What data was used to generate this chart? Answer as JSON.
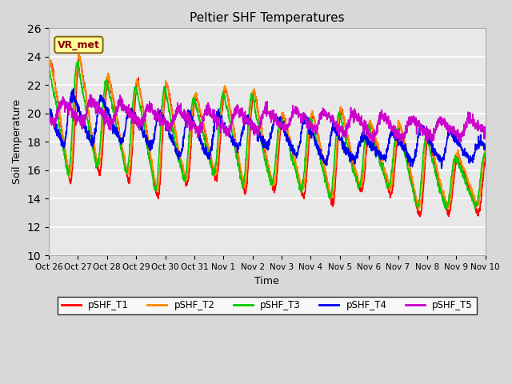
{
  "title": "Peltier SHF Temperatures",
  "xlabel": "Time",
  "ylabel": "Soil Temperature",
  "ylim": [
    10,
    26
  ],
  "yticks": [
    10,
    12,
    14,
    16,
    18,
    20,
    22,
    24,
    26
  ],
  "series_colors": [
    "#ff0000",
    "#ff8800",
    "#00cc00",
    "#0000ee",
    "#cc00cc"
  ],
  "series_names": [
    "pSHF_T1",
    "pSHF_T2",
    "pSHF_T3",
    "pSHF_T4",
    "pSHF_T5"
  ],
  "xtick_labels": [
    "Oct 26",
    "Oct 27",
    "Oct 28",
    "Oct 29",
    "Oct 30",
    "Oct 31",
    "Nov 1",
    "Nov 2",
    "Nov 3",
    "Nov 4",
    "Nov 5",
    "Nov 6",
    "Nov 7",
    "Nov 8",
    "Nov 9",
    "Nov 10"
  ],
  "annotation_text": "VR_met",
  "annotation_bg": "#ffff99",
  "annotation_border": "#8B6914",
  "plot_bg": "#e8e8e8",
  "fig_bg": "#d8d8d8",
  "linewidth": 1.2,
  "n_points": 2000,
  "duration_days": 15
}
